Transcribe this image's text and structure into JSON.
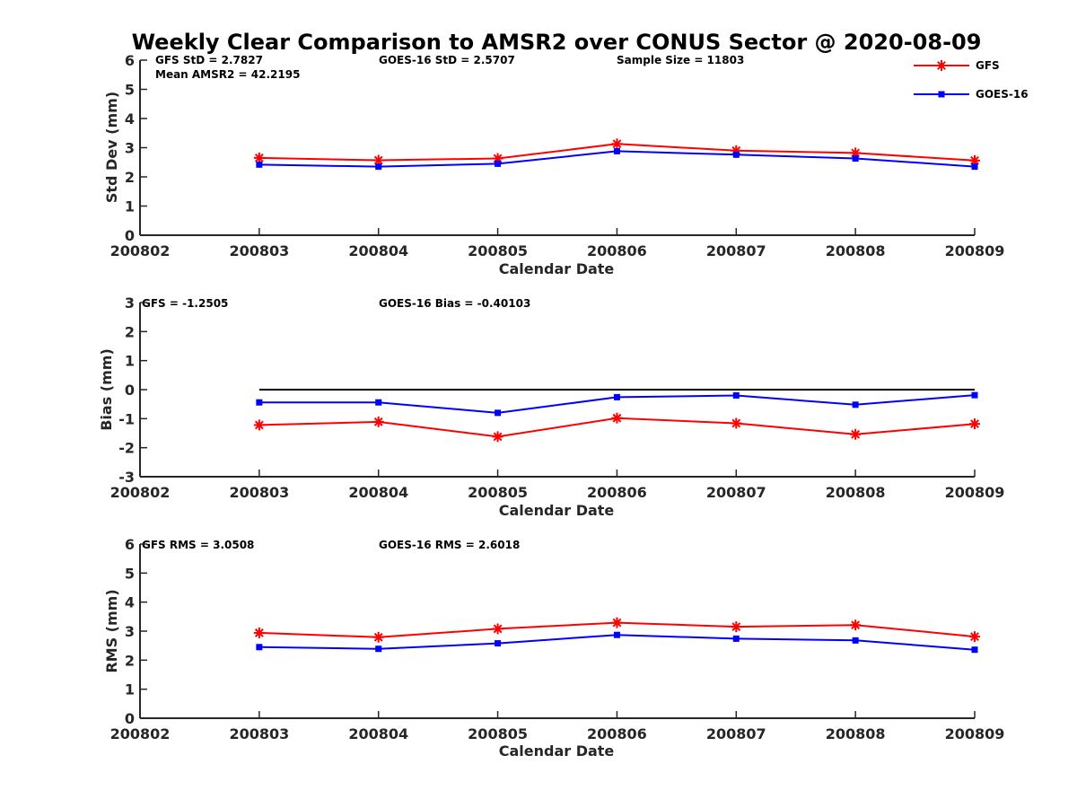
{
  "title": "Weekly Clear Comparison to AMSR2 over CONUS Sector @ 2020-08-09",
  "colors": {
    "GFS": "#ff0000",
    "GOES-16": "#0000ff",
    "axis": "#262626",
    "zero_line": "#000000"
  },
  "legend": {
    "placement": "top-right",
    "entries": [
      {
        "label": "GFS",
        "marker": "asterisk",
        "color": "#ff0000"
      },
      {
        "label": "GOES-16",
        "marker": "square",
        "color": "#0000ff"
      }
    ]
  },
  "chart_data": [
    {
      "type": "line",
      "xlabel": "Calendar Date",
      "ylabel": "Std Dev (mm)",
      "x_categories": [
        "200802",
        "200803",
        "200804",
        "200805",
        "200806",
        "200807",
        "200808",
        "200809"
      ],
      "ylim": [
        0,
        6
      ],
      "yticks": [
        0,
        1,
        2,
        3,
        4,
        5,
        6
      ],
      "annotations": [
        "GFS StD = 2.7827",
        "GOES-16 StD = 2.5707",
        "Sample Size = 11803",
        "Mean AMSR2 = 42.2195"
      ],
      "series": [
        {
          "name": "GFS",
          "x": [
            "200803",
            "200804",
            "200805",
            "200806",
            "200807",
            "200808",
            "200809"
          ],
          "values": [
            2.65,
            2.57,
            2.63,
            3.13,
            2.9,
            2.82,
            2.56
          ]
        },
        {
          "name": "GOES-16",
          "x": [
            "200803",
            "200804",
            "200805",
            "200806",
            "200807",
            "200808",
            "200809"
          ],
          "values": [
            2.42,
            2.35,
            2.45,
            2.88,
            2.76,
            2.63,
            2.35
          ]
        }
      ]
    },
    {
      "type": "line",
      "xlabel": "Calendar Date",
      "ylabel": "Bias (mm)",
      "x_categories": [
        "200802",
        "200803",
        "200804",
        "200805",
        "200806",
        "200807",
        "200808",
        "200809"
      ],
      "ylim": [
        -3,
        3
      ],
      "yticks": [
        -3,
        -2,
        -1,
        0,
        1,
        2,
        3
      ],
      "zero_line": true,
      "annotations": [
        "GFS = -1.2505",
        "GOES-16 Bias  = -0.40103"
      ],
      "series": [
        {
          "name": "GFS",
          "x": [
            "200803",
            "200804",
            "200805",
            "200806",
            "200807",
            "200808",
            "200809"
          ],
          "values": [
            -1.22,
            -1.11,
            -1.62,
            -0.98,
            -1.16,
            -1.54,
            -1.18
          ]
        },
        {
          "name": "GOES-16",
          "x": [
            "200803",
            "200804",
            "200805",
            "200806",
            "200807",
            "200808",
            "200809"
          ],
          "values": [
            -0.44,
            -0.44,
            -0.8,
            -0.26,
            -0.2,
            -0.52,
            -0.19
          ]
        }
      ]
    },
    {
      "type": "line",
      "xlabel": "Calendar Date",
      "ylabel": "RMS (mm)",
      "x_categories": [
        "200802",
        "200803",
        "200804",
        "200805",
        "200806",
        "200807",
        "200808",
        "200809"
      ],
      "ylim": [
        0,
        6
      ],
      "yticks": [
        0,
        1,
        2,
        3,
        4,
        5,
        6
      ],
      "annotations": [
        "GFS RMS = 3.0508",
        "GOES-16 RMS = 2.6018"
      ],
      "series": [
        {
          "name": "GFS",
          "x": [
            "200803",
            "200804",
            "200805",
            "200806",
            "200807",
            "200808",
            "200809"
          ],
          "values": [
            2.94,
            2.79,
            3.08,
            3.29,
            3.15,
            3.21,
            2.81
          ]
        },
        {
          "name": "GOES-16",
          "x": [
            "200803",
            "200804",
            "200805",
            "200806",
            "200807",
            "200808",
            "200809"
          ],
          "values": [
            2.45,
            2.39,
            2.58,
            2.87,
            2.74,
            2.68,
            2.36
          ]
        }
      ]
    }
  ]
}
